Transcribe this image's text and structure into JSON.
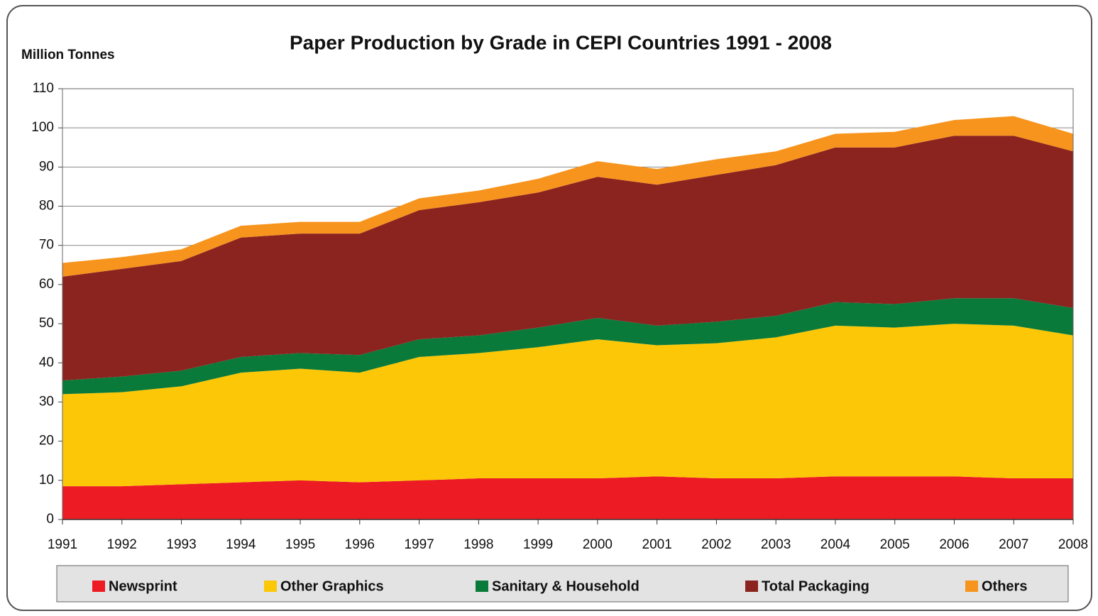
{
  "chart_data": {
    "type": "stacked_area",
    "title": "Paper Production by Grade in CEPI  Countries 1991 - 2008",
    "y_label": "Million Tonnes",
    "x": [
      1991,
      1992,
      1993,
      1994,
      1995,
      1996,
      1997,
      1998,
      1999,
      2000,
      2001,
      2002,
      2003,
      2004,
      2005,
      2006,
      2007,
      2008
    ],
    "xlim": [
      1991,
      2008
    ],
    "xticks": [
      1991,
      1992,
      1993,
      1994,
      1995,
      1996,
      1997,
      1998,
      1999,
      2000,
      2001,
      2002,
      2003,
      2004,
      2005,
      2006,
      2007,
      2008
    ],
    "ylim": [
      0,
      110
    ],
    "yticks": [
      0,
      10,
      20,
      30,
      40,
      50,
      60,
      70,
      80,
      90,
      100,
      110
    ],
    "grid": true,
    "legend": "bottom",
    "series": [
      {
        "name": "Newsprint",
        "color": "#ed1c24",
        "values": [
          8.5,
          8.5,
          9,
          9.5,
          10,
          9.5,
          10,
          10.5,
          10.5,
          10.5,
          11,
          10.5,
          10.5,
          11,
          11,
          11,
          10.5,
          10.5
        ]
      },
      {
        "name": "Other Graphics",
        "color": "#fcc707",
        "values": [
          23.5,
          24,
          25,
          28,
          28.5,
          28,
          31.5,
          32,
          33.5,
          35.5,
          33.5,
          34.5,
          36,
          38.5,
          38,
          39,
          39,
          36.5
        ]
      },
      {
        "name": "Sanitary & Household",
        "color": "#0a7a3a",
        "values": [
          3.5,
          4,
          4,
          4,
          4,
          4.5,
          4.5,
          4.5,
          5,
          5.5,
          5,
          5.5,
          5.5,
          6,
          6,
          6.5,
          7,
          7
        ]
      },
      {
        "name": "Total Packaging",
        "color": "#8b241f",
        "values": [
          26.5,
          27.5,
          28,
          30.5,
          30.5,
          31,
          33,
          34,
          34.5,
          36,
          36,
          37.5,
          38.5,
          39.5,
          40,
          41.5,
          41.5,
          40
        ]
      },
      {
        "name": "Others",
        "color": "#f7941d",
        "values": [
          3.5,
          3,
          3,
          3,
          3,
          3,
          3,
          3,
          3.5,
          4,
          4,
          4,
          3.5,
          3.5,
          4,
          4,
          5,
          4.5
        ]
      }
    ]
  }
}
